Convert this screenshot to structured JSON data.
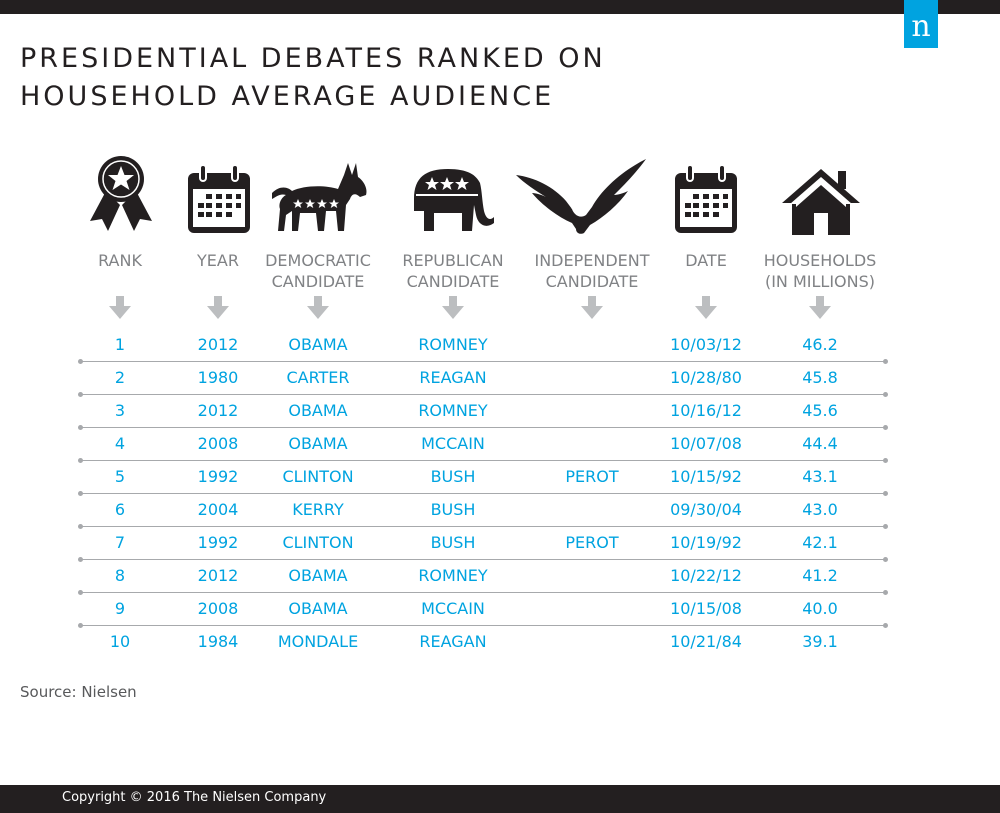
{
  "title_lines": [
    "PRESIDENTIAL DEBATES RANKED ON",
    "HOUSEHOLD AVERAGE AUDIENCE"
  ],
  "logo_letter": "n",
  "accent_color": "#00a3e0",
  "icons": [
    "ribbon-star-icon",
    "calendar-icon",
    "donkey-icon",
    "elephant-icon",
    "eagle-icon",
    "calendar-icon",
    "house-icon"
  ],
  "headers": [
    {
      "key": "rank",
      "lines": [
        "RANK"
      ]
    },
    {
      "key": "year",
      "lines": [
        "YEAR"
      ]
    },
    {
      "key": "dem",
      "lines": [
        "DEMOCRATIC",
        "CANDIDATE"
      ]
    },
    {
      "key": "rep",
      "lines": [
        "REPUBLICAN",
        "CANDIDATE"
      ]
    },
    {
      "key": "ind",
      "lines": [
        "INDEPENDENT",
        "CANDIDATE"
      ]
    },
    {
      "key": "date",
      "lines": [
        "DATE"
      ]
    },
    {
      "key": "hh",
      "lines": [
        "HOUSEHOLDS",
        "(IN MILLIONS)"
      ]
    }
  ],
  "chart_data": {
    "type": "table",
    "columns": [
      "RANK",
      "YEAR",
      "DEMOCRATIC CANDIDATE",
      "REPUBLICAN CANDIDATE",
      "INDEPENDENT CANDIDATE",
      "DATE",
      "HOUSEHOLDS (IN MILLIONS)"
    ],
    "rows": [
      [
        "1",
        "2012",
        "OBAMA",
        "ROMNEY",
        "",
        "10/03/12",
        "46.2"
      ],
      [
        "2",
        "1980",
        "CARTER",
        "REAGAN",
        "",
        "10/28/80",
        "45.8"
      ],
      [
        "3",
        "2012",
        "OBAMA",
        "ROMNEY",
        "",
        "10/16/12",
        "45.6"
      ],
      [
        "4",
        "2008",
        "OBAMA",
        "MCCAIN",
        "",
        "10/07/08",
        "44.4"
      ],
      [
        "5",
        "1992",
        "CLINTON",
        "BUSH",
        "PEROT",
        "10/15/92",
        "43.1"
      ],
      [
        "6",
        "2004",
        "KERRY",
        "BUSH",
        "",
        "09/30/04",
        "43.0"
      ],
      [
        "7",
        "1992",
        "CLINTON",
        "BUSH",
        "PEROT",
        "10/19/92",
        "42.1"
      ],
      [
        "8",
        "2012",
        "OBAMA",
        "ROMNEY",
        "",
        "10/22/12",
        "41.2"
      ],
      [
        "9",
        "2008",
        "OBAMA",
        "MCCAIN",
        "",
        "10/15/08",
        "40.0"
      ],
      [
        "10",
        "1984",
        "MONDALE",
        "REAGAN",
        "",
        "10/21/84",
        "39.1"
      ]
    ]
  },
  "source": "Source: Nielsen",
  "copyright": "Copyright © 2016 The Nielsen Company"
}
